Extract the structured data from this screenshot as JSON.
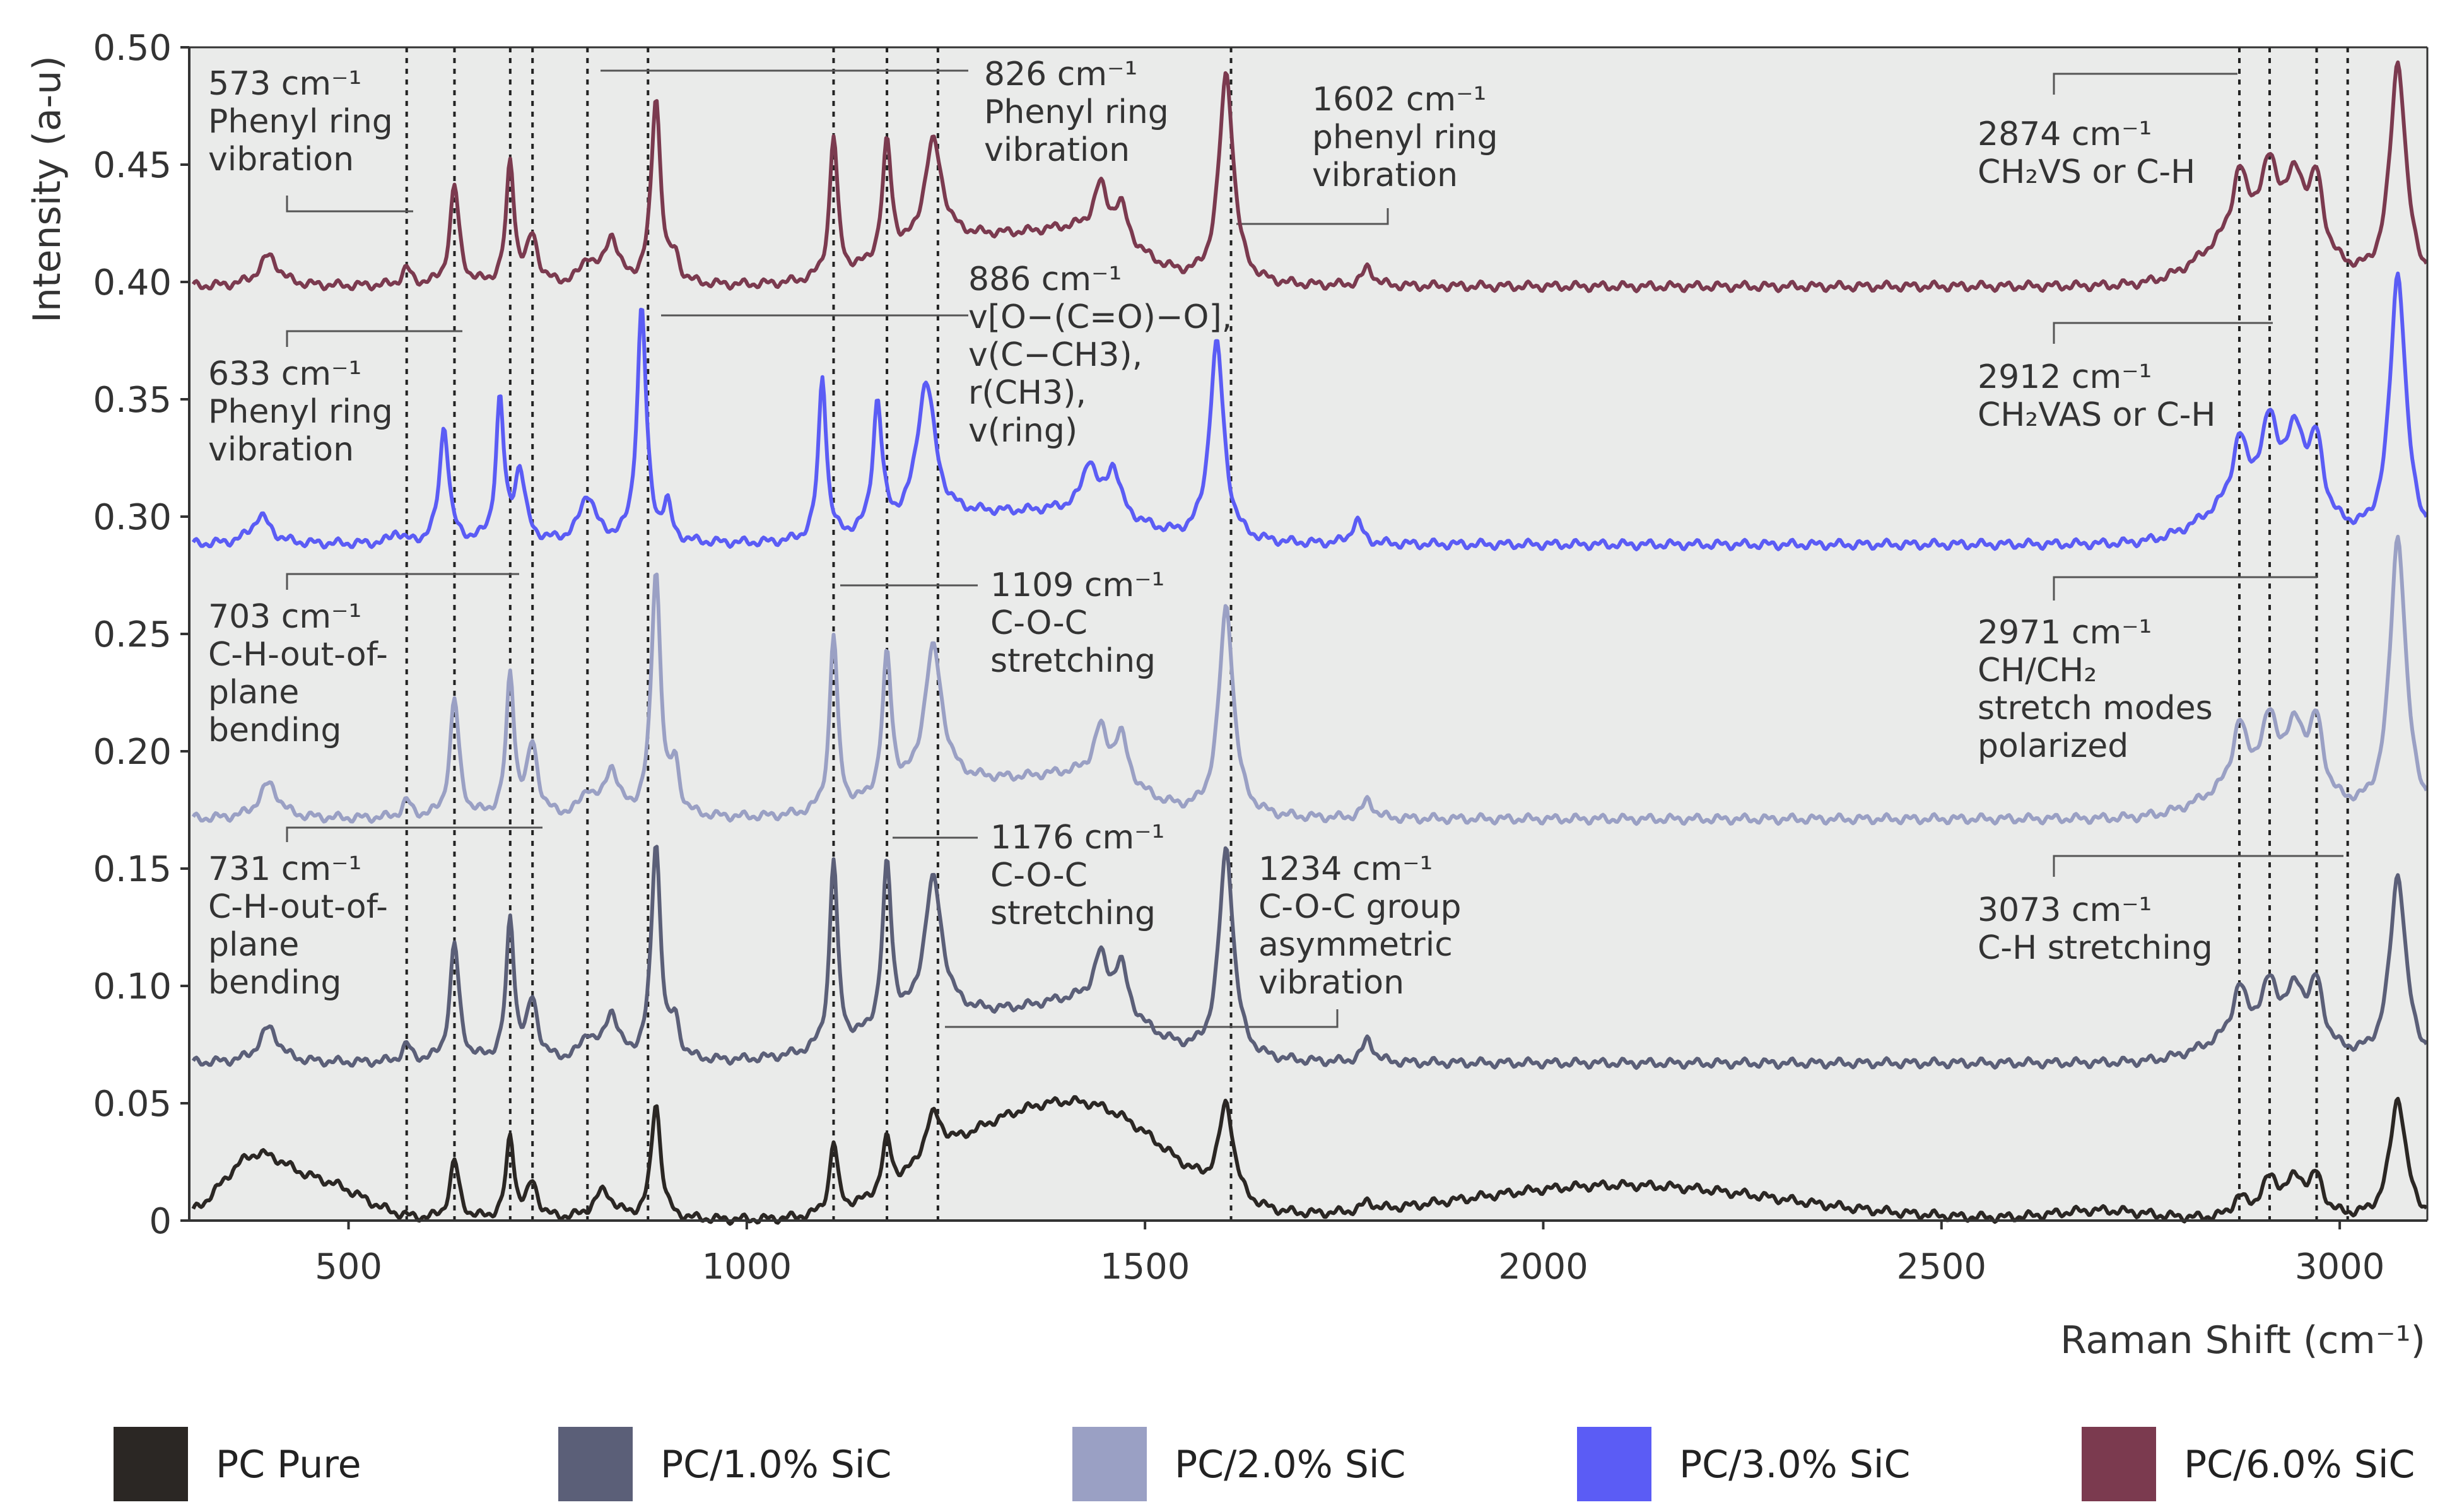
{
  "chart_data": {
    "type": "line",
    "title": "",
    "xlabel": "Raman Shift (cm⁻¹)",
    "ylabel": "Intensity (a-u)",
    "xlim": [
      300,
      3110
    ],
    "ylim": [
      0,
      0.5
    ],
    "xticks": [
      500,
      1000,
      1500,
      2000,
      2500,
      3000
    ],
    "yticks": [
      0,
      0.05,
      0.1,
      0.15,
      0.2,
      0.25,
      0.3,
      0.35,
      0.4,
      0.45,
      0.5
    ],
    "ytick_labels": [
      "0",
      "0.05",
      "0.10",
      "0.15",
      "0.20",
      "0.25",
      "0.30",
      "0.35",
      "0.40",
      "0.45",
      "0.50"
    ],
    "reference_lines_x": [
      573,
      633,
      703,
      731,
      800,
      876,
      1109,
      1176,
      1240,
      1608,
      2874,
      2912,
      2971,
      3010
    ],
    "legend_position": "bottom",
    "series": [
      {
        "name": "PC Pure",
        "color": "#2b2724",
        "baseline": 0.0,
        "broad": [
          [
            380,
            0.025,
            40
          ],
          [
            470,
            0.015,
            50
          ],
          [
            1300,
            0.03,
            90
          ],
          [
            1450,
            0.04,
            90
          ],
          [
            2100,
            0.015,
            200
          ],
          [
            2700,
            0.004,
            60
          ]
        ],
        "peaks": [
          [
            633,
            0.025,
            7
          ],
          [
            703,
            0.035,
            6
          ],
          [
            731,
            0.015,
            8
          ],
          [
            820,
            0.012,
            15
          ],
          [
            886,
            0.05,
            7
          ],
          [
            1109,
            0.03,
            6
          ],
          [
            1176,
            0.022,
            7
          ],
          [
            1234,
            0.02,
            14
          ],
          [
            1602,
            0.04,
            11
          ],
          [
            1780,
            0.004,
            8
          ],
          [
            2874,
            0.008,
            10
          ],
          [
            2912,
            0.015,
            14
          ],
          [
            2945,
            0.015,
            16
          ],
          [
            2971,
            0.015,
            10
          ],
          [
            3073,
            0.052,
            12
          ]
        ]
      },
      {
        "name": "PC/1.0% SiC",
        "color": "#5b5f78",
        "baseline": 0.067,
        "broad": [
          [
            1300,
            0.02,
            120
          ],
          [
            1440,
            0.015,
            60
          ],
          [
            2900,
            0.012,
            60
          ]
        ],
        "peaks": [
          [
            400,
            0.015,
            15
          ],
          [
            573,
            0.007,
            7
          ],
          [
            633,
            0.05,
            7
          ],
          [
            703,
            0.06,
            6
          ],
          [
            731,
            0.025,
            8
          ],
          [
            800,
            0.01,
            10
          ],
          [
            830,
            0.02,
            10
          ],
          [
            886,
            0.093,
            7
          ],
          [
            910,
            0.015,
            6
          ],
          [
            1109,
            0.08,
            6
          ],
          [
            1176,
            0.07,
            7
          ],
          [
            1234,
            0.06,
            14
          ],
          [
            1444,
            0.02,
            10
          ],
          [
            1470,
            0.02,
            10
          ],
          [
            1602,
            0.09,
            11
          ],
          [
            1780,
            0.01,
            8
          ],
          [
            2874,
            0.02,
            10
          ],
          [
            2912,
            0.02,
            12
          ],
          [
            2945,
            0.02,
            14
          ],
          [
            2971,
            0.025,
            10
          ],
          [
            3073,
            0.08,
            12
          ]
        ]
      },
      {
        "name": "PC/2.0% SiC",
        "color": "#9aa0c4",
        "baseline": 0.171,
        "broad": [
          [
            1300,
            0.015,
            100
          ],
          [
            1440,
            0.012,
            60
          ],
          [
            2900,
            0.015,
            60
          ]
        ],
        "peaks": [
          [
            400,
            0.015,
            15
          ],
          [
            573,
            0.007,
            7
          ],
          [
            633,
            0.05,
            7
          ],
          [
            703,
            0.06,
            6
          ],
          [
            731,
            0.03,
            8
          ],
          [
            800,
            0.01,
            10
          ],
          [
            830,
            0.02,
            10
          ],
          [
            886,
            0.105,
            7
          ],
          [
            910,
            0.02,
            6
          ],
          [
            1109,
            0.075,
            6
          ],
          [
            1176,
            0.06,
            7
          ],
          [
            1234,
            0.06,
            14
          ],
          [
            1444,
            0.02,
            10
          ],
          [
            1470,
            0.02,
            10
          ],
          [
            1602,
            0.09,
            11
          ],
          [
            1780,
            0.008,
            8
          ],
          [
            2874,
            0.025,
            10
          ],
          [
            2912,
            0.025,
            12
          ],
          [
            2945,
            0.025,
            14
          ],
          [
            2971,
            0.03,
            10
          ],
          [
            3073,
            0.12,
            12
          ]
        ]
      },
      {
        "name": "PC/3.0% SiC",
        "color": "#5b5cf5",
        "baseline": 0.288,
        "broad": [
          [
            1300,
            0.012,
            90
          ],
          [
            1440,
            0.01,
            60
          ],
          [
            2900,
            0.02,
            60
          ]
        ],
        "peaks": [
          [
            390,
            0.012,
            15
          ],
          [
            560,
            0.005,
            7
          ],
          [
            620,
            0.05,
            7
          ],
          [
            690,
            0.06,
            6
          ],
          [
            715,
            0.03,
            8
          ],
          [
            800,
            0.02,
            12
          ],
          [
            868,
            0.1,
            7
          ],
          [
            900,
            0.015,
            6
          ],
          [
            1095,
            0.07,
            6
          ],
          [
            1164,
            0.055,
            7
          ],
          [
            1225,
            0.06,
            14
          ],
          [
            1430,
            0.02,
            10
          ],
          [
            1460,
            0.02,
            10
          ],
          [
            1590,
            0.085,
            11
          ],
          [
            1766,
            0.01,
            8
          ],
          [
            2874,
            0.025,
            10
          ],
          [
            2912,
            0.03,
            12
          ],
          [
            2945,
            0.03,
            14
          ],
          [
            2971,
            0.03,
            10
          ],
          [
            3073,
            0.115,
            12
          ]
        ]
      },
      {
        "name": "PC/6.0% SiC",
        "color": "#7b3a4f",
        "baseline": 0.398,
        "broad": [
          [
            1300,
            0.02,
            100
          ],
          [
            1440,
            0.015,
            60
          ],
          [
            2900,
            0.025,
            60
          ]
        ],
        "peaks": [
          [
            400,
            0.013,
            15
          ],
          [
            573,
            0.007,
            7
          ],
          [
            633,
            0.042,
            7
          ],
          [
            703,
            0.052,
            6
          ],
          [
            731,
            0.02,
            8
          ],
          [
            800,
            0.01,
            10
          ],
          [
            830,
            0.02,
            10
          ],
          [
            886,
            0.08,
            7
          ],
          [
            910,
            0.01,
            6
          ],
          [
            1109,
            0.06,
            6
          ],
          [
            1176,
            0.05,
            7
          ],
          [
            1234,
            0.045,
            14
          ],
          [
            1444,
            0.02,
            10
          ],
          [
            1470,
            0.015,
            10
          ],
          [
            1602,
            0.09,
            11
          ],
          [
            1780,
            0.008,
            8
          ],
          [
            2874,
            0.025,
            10
          ],
          [
            2912,
            0.025,
            12
          ],
          [
            2945,
            0.025,
            14
          ],
          [
            2971,
            0.03,
            10
          ],
          [
            3073,
            0.095,
            12
          ]
        ]
      }
    ],
    "annotations": [
      {
        "id": "a573",
        "lines": [
          "573 cm⁻¹",
          "Phenyl ring",
          "vibration"
        ]
      },
      {
        "id": "a633",
        "lines": [
          "633 cm⁻¹",
          "Phenyl ring",
          "vibration"
        ]
      },
      {
        "id": "a703",
        "lines": [
          "703 cm⁻¹",
          "C-H-out-of-",
          "plane",
          "bending"
        ]
      },
      {
        "id": "a731",
        "lines": [
          "731 cm⁻¹",
          "C-H-out-of-",
          "plane",
          "bending"
        ]
      },
      {
        "id": "a826",
        "lines": [
          "826 cm⁻¹",
          "Phenyl ring",
          "vibration"
        ]
      },
      {
        "id": "a886",
        "lines": [
          "886 cm⁻¹",
          "v[O−(C=O)−O],",
          "v(C−CH3),",
          "r(CH3),",
          "v(ring)"
        ]
      },
      {
        "id": "a1109",
        "lines": [
          "1109 cm⁻¹",
          "C-O-C",
          "stretching"
        ]
      },
      {
        "id": "a1176",
        "lines": [
          "1176 cm⁻¹",
          "C-O-C",
          "stretching"
        ]
      },
      {
        "id": "a1234",
        "lines": [
          "1234 cm⁻¹",
          "C-O-C group",
          "asymmetric",
          "vibration"
        ]
      },
      {
        "id": "a1602",
        "lines": [
          "1602 cm⁻¹",
          "phenyl ring",
          "vibration"
        ]
      },
      {
        "id": "a2874",
        "lines": [
          "2874 cm⁻¹",
          "CH₂VS or C-H"
        ]
      },
      {
        "id": "a2912",
        "lines": [
          "2912 cm⁻¹",
          "CH₂VAS or C-H"
        ]
      },
      {
        "id": "a2971",
        "lines": [
          "2971 cm⁻¹",
          "CH/CH₂",
          "stretch modes",
          "polarized"
        ]
      },
      {
        "id": "a3073",
        "lines": [
          "3073 cm⁻¹",
          "C-H stretching"
        ]
      }
    ],
    "legend": [
      {
        "label": "PC Pure",
        "color": "#2b2724"
      },
      {
        "label": "PC/1.0% SiC",
        "color": "#5b5f78"
      },
      {
        "label": "PC/2.0% SiC",
        "color": "#9aa0c4"
      },
      {
        "label": "PC/3.0% SiC",
        "color": "#5b5cf5"
      },
      {
        "label": "PC/6.0% SiC",
        "color": "#7b3a4f"
      }
    ]
  }
}
